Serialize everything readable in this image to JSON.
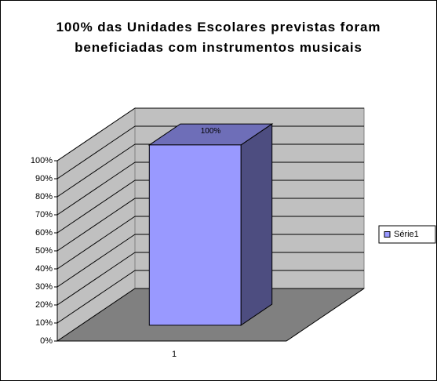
{
  "chart_data": {
    "type": "bar3d",
    "title": "100% das Unidades Escolares previstas foram beneficiadas com instrumentos musicais",
    "categories": [
      "1"
    ],
    "series": [
      {
        "name": "Série1",
        "color": "#9999ff",
        "values": [
          100
        ],
        "value_labels": [
          "100%"
        ]
      }
    ],
    "ylim": [
      0,
      100
    ],
    "yticks": [
      {
        "value": 0,
        "label": "0%"
      },
      {
        "value": 10,
        "label": "10%"
      },
      {
        "value": 20,
        "label": "20%"
      },
      {
        "value": 30,
        "label": "30%"
      },
      {
        "value": 40,
        "label": "40%"
      },
      {
        "value": 50,
        "label": "50%"
      },
      {
        "value": 60,
        "label": "60%"
      },
      {
        "value": 70,
        "label": "70%"
      },
      {
        "value": 80,
        "label": "80%"
      },
      {
        "value": 90,
        "label": "90%"
      },
      {
        "value": 100,
        "label": "100%"
      }
    ],
    "grid": true,
    "legend": "right"
  }
}
